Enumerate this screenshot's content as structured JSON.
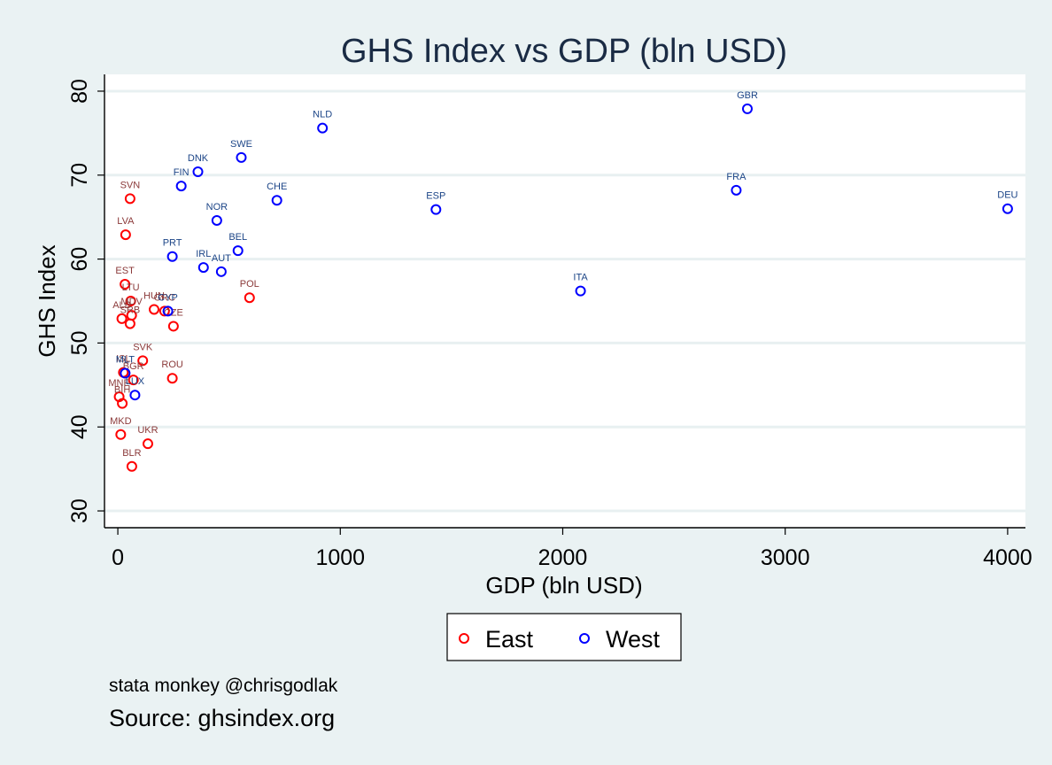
{
  "chart_data": {
    "type": "scatter",
    "title": "GHS Index vs GDP (bln USD)",
    "xlabel": "GDP (bln USD)",
    "ylabel": "GHS Index",
    "xlim": [
      -60,
      4080
    ],
    "ylim": [
      28,
      82
    ],
    "xticks": [
      0,
      1000,
      2000,
      3000,
      4000
    ],
    "yticks": [
      30,
      40,
      50,
      60,
      70,
      80
    ],
    "grid": "horizontal",
    "legend_position": "bottom",
    "series": [
      {
        "name": "East",
        "color": "#ff0000",
        "label_color": "#8b3a3a",
        "points": [
          {
            "label": "SVN",
            "x": 55,
            "y": 67.2
          },
          {
            "label": "LVA",
            "x": 35,
            "y": 62.9
          },
          {
            "label": "EST",
            "x": 32,
            "y": 57.0
          },
          {
            "label": "LTU",
            "x": 58,
            "y": 55.0
          },
          {
            "label": "HUN",
            "x": 163,
            "y": 54.0
          },
          {
            "label": "GRC",
            "x": 210,
            "y": 53.8
          },
          {
            "label": "MDV",
            "x": 62,
            "y": 53.3
          },
          {
            "label": "ALB",
            "x": 18,
            "y": 52.9
          },
          {
            "label": "SRB",
            "x": 55,
            "y": 52.3
          },
          {
            "label": "CZE",
            "x": 250,
            "y": 52.0
          },
          {
            "label": "POL",
            "x": 592,
            "y": 55.4
          },
          {
            "label": "SVK",
            "x": 112,
            "y": 47.9
          },
          {
            "label": "ROU",
            "x": 245,
            "y": 45.8
          },
          {
            "label": "ISL",
            "x": 25,
            "y": 46.5
          },
          {
            "label": "BGR",
            "x": 70,
            "y": 45.6
          },
          {
            "label": "MNE",
            "x": 6,
            "y": 43.6
          },
          {
            "label": "BIH",
            "x": 20,
            "y": 42.8
          },
          {
            "label": "MKD",
            "x": 13,
            "y": 39.1
          },
          {
            "label": "UKR",
            "x": 135,
            "y": 38.0
          },
          {
            "label": "BLR",
            "x": 63,
            "y": 35.3
          }
        ]
      },
      {
        "name": "West",
        "color": "#0000ff",
        "label_color": "#1c4587",
        "points": [
          {
            "label": "GBR",
            "x": 2830,
            "y": 77.9
          },
          {
            "label": "NLD",
            "x": 920,
            "y": 75.6
          },
          {
            "label": "SWE",
            "x": 555,
            "y": 72.1
          },
          {
            "label": "DNK",
            "x": 360,
            "y": 70.4
          },
          {
            "label": "FIN",
            "x": 285,
            "y": 68.7
          },
          {
            "label": "CHE",
            "x": 715,
            "y": 67.0
          },
          {
            "label": "FRA",
            "x": 2780,
            "y": 68.2
          },
          {
            "label": "ESP",
            "x": 1430,
            "y": 65.9
          },
          {
            "label": "DEU",
            "x": 4000,
            "y": 66.0
          },
          {
            "label": "NOR",
            "x": 445,
            "y": 64.6
          },
          {
            "label": "PRT",
            "x": 245,
            "y": 60.3
          },
          {
            "label": "BEL",
            "x": 540,
            "y": 61.0
          },
          {
            "label": "IRL",
            "x": 385,
            "y": 59.0
          },
          {
            "label": "AUT",
            "x": 465,
            "y": 58.5
          },
          {
            "label": "ITA",
            "x": 2080,
            "y": 56.2
          },
          {
            "label": "CYP",
            "x": 225,
            "y": 53.8
          },
          {
            "label": "MLT",
            "x": 33,
            "y": 46.4
          },
          {
            "label": "LUX",
            "x": 77,
            "y": 43.8
          }
        ]
      }
    ]
  },
  "notes": {
    "credit": "stata monkey @chrisgodlak",
    "source": "Source: ghsindex.org"
  }
}
